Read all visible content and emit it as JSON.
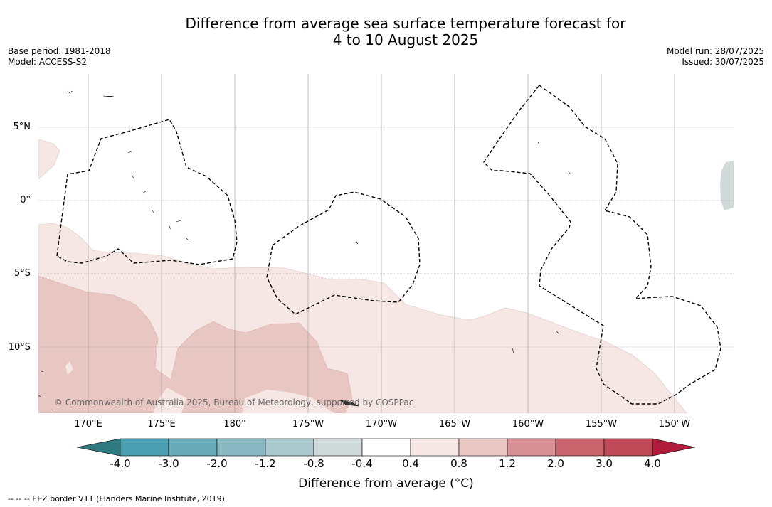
{
  "header": {
    "title_line1": "Difference from average sea surface temperature forecast for",
    "title_line2": "4 to 10 August 2025",
    "base_period": "Base period: 1981-2018",
    "model": "Model: ACCESS-S2",
    "model_run": "Model run: 28/07/2025",
    "issued": "Issued: 30/07/2025"
  },
  "map": {
    "lat_labels": [
      "5°N",
      "0°",
      "5°S",
      "10°S"
    ],
    "lon_labels": [
      "170°E",
      "175°E",
      "180°",
      "175°W",
      "170°W",
      "165°W",
      "160°W",
      "155°W",
      "150°W"
    ],
    "copyright": "© Commonwealth of Australia 2025, Bureau of Meteorology, supported by COSPPac"
  },
  "colorbar": {
    "tick_labels": [
      "-4.0",
      "-3.0",
      "-2.0",
      "-1.2",
      "-0.8",
      "-0.4",
      "0.4",
      "0.8",
      "1.2",
      "2.0",
      "3.0",
      "4.0"
    ],
    "colors": [
      "#2f7a80",
      "#4aa0b0",
      "#6aabb9",
      "#8ab9c4",
      "#aac9ce",
      "#d0dadb",
      "#ffffff",
      "#f6e7e4",
      "#e8c6c1",
      "#d68f94",
      "#c9636c",
      "#c04a58",
      "#b01c3b"
    ],
    "title": "Difference from average (°C)"
  },
  "footnote": "--  --  -- EEZ border V11 (Flanders Marine Institute, 2019)."
}
